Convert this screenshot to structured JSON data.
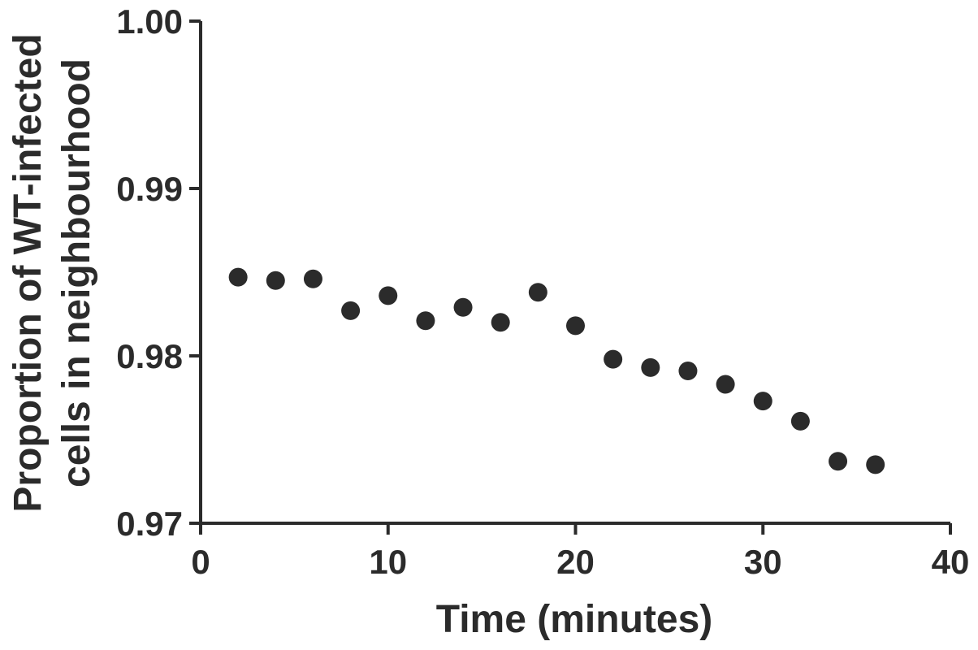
{
  "chart_data": {
    "type": "scatter",
    "title": "",
    "xlabel": "Time (minutes)",
    "ylabel_lines": [
      "Proportion of WT-infected",
      "cells in neighbourhood"
    ],
    "xlim": [
      0,
      40
    ],
    "ylim": [
      0.97,
      1.0
    ],
    "x_ticks": [
      0,
      10,
      20,
      30,
      40
    ],
    "x_tick_labels": [
      "0",
      "10",
      "20",
      "30",
      "40"
    ],
    "y_ticks": [
      0.97,
      0.98,
      0.99,
      1.0
    ],
    "y_tick_labels": [
      "0.97",
      "0.98",
      "0.99",
      "1.00"
    ],
    "grid": false,
    "marker_color": "#2b2b2b",
    "series": [
      {
        "x": [
          2,
          4,
          6,
          8,
          10,
          12,
          14,
          16,
          18,
          20,
          22,
          24,
          26,
          28,
          30,
          32,
          34,
          36
        ],
        "y": [
          0.9847,
          0.9845,
          0.9846,
          0.9827,
          0.9836,
          0.9821,
          0.9829,
          0.982,
          0.9838,
          0.9818,
          0.9798,
          0.9793,
          0.9791,
          0.9783,
          0.9773,
          0.9761,
          0.9737,
          0.9735
        ]
      }
    ]
  }
}
